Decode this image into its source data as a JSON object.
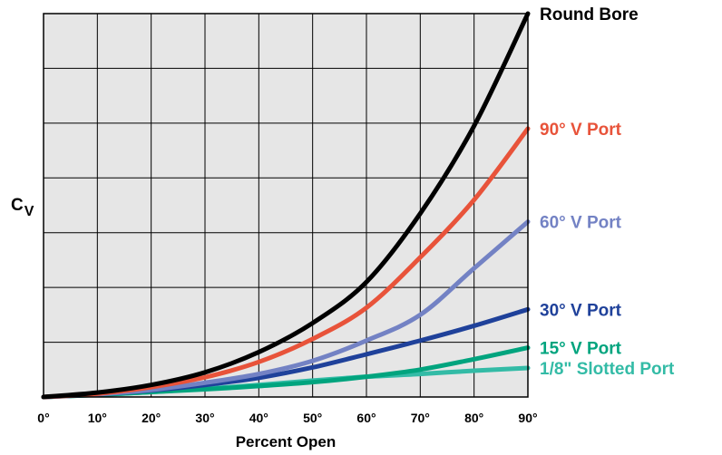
{
  "chart_data": {
    "type": "line",
    "title": "",
    "xlabel": "Percent Open",
    "ylabel": "C",
    "ylabel_sub": "V",
    "x": [
      0,
      10,
      20,
      30,
      40,
      50,
      60,
      70,
      80,
      90
    ],
    "x_tick_labels": [
      "0°",
      "10°",
      "20°",
      "30°",
      "40°",
      "50°",
      "60°",
      "70°",
      "80°",
      "90°"
    ],
    "xlim": [
      0,
      90
    ],
    "ylim": [
      0,
      7
    ],
    "y_ticks_labeled": false,
    "grid": true,
    "legend": "labels at right end of each line",
    "series": [
      {
        "name": "Round Bore",
        "color": "#000000",
        "values": [
          0,
          0.08,
          0.22,
          0.45,
          0.82,
          1.35,
          2.1,
          3.35,
          4.95,
          7.0
        ]
      },
      {
        "name": "90° V Port",
        "color": "#e8533a",
        "values": [
          0,
          0.06,
          0.18,
          0.36,
          0.64,
          1.06,
          1.63,
          2.55,
          3.6,
          4.9
        ]
      },
      {
        "name": "60° V Port",
        "color": "#7382c4",
        "values": [
          0,
          0.05,
          0.13,
          0.26,
          0.42,
          0.66,
          1.03,
          1.5,
          2.35,
          3.2
        ]
      },
      {
        "name": "30° V Port",
        "color": "#1f419a",
        "values": [
          0,
          0.05,
          0.12,
          0.22,
          0.35,
          0.54,
          0.78,
          1.03,
          1.3,
          1.6
        ]
      },
      {
        "name": "15° V Port",
        "color": "#00a47e",
        "values": [
          0,
          0.04,
          0.09,
          0.14,
          0.2,
          0.27,
          0.37,
          0.5,
          0.69,
          0.9
        ]
      },
      {
        "name": "1/8\" Slotted Port",
        "color": "#33bba6",
        "values": [
          0,
          0.04,
          0.09,
          0.15,
          0.22,
          0.3,
          0.37,
          0.42,
          0.48,
          0.53
        ]
      }
    ]
  }
}
